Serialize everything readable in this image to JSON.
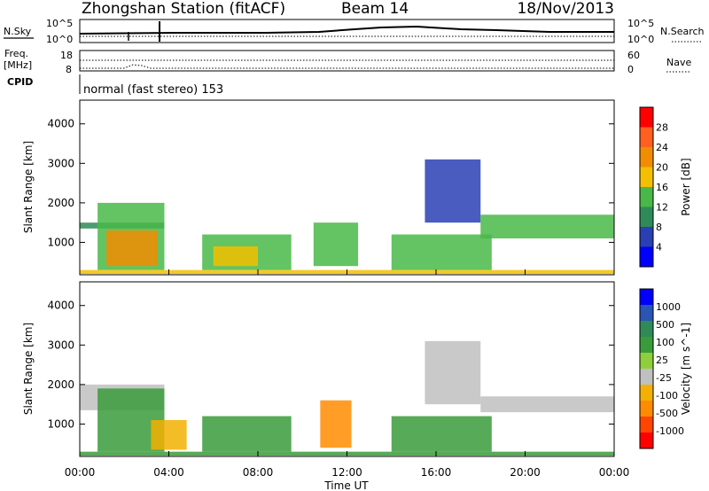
{
  "header": {
    "title": "Zhongshan Station (fitACF)",
    "beam": "Beam 14",
    "date": "18/Nov/2013"
  },
  "noise_panel": {
    "left_label": "N.Sky",
    "left_ticks": [
      "10^5",
      "10^0"
    ],
    "right_ticks": [
      "10^5",
      "10^0"
    ],
    "right_label": "N.Search"
  },
  "freq_panel": {
    "left_label_1": "Freq.",
    "left_label_2": "[MHz]",
    "left_ticks": [
      "18",
      "8"
    ],
    "right_ticks": [
      "60",
      "0"
    ],
    "right_label": "Nave"
  },
  "cpid_panel": {
    "left_label": "CPID",
    "text": "normal (fast stereo) 153"
  },
  "colors": {
    "power": [
      "#0000ff",
      "#2a3fb4",
      "#2e8b57",
      "#49b847",
      "#f2c000",
      "#f28c00",
      "#ff6020",
      "#ff0000"
    ],
    "velocity": [
      "#ff0000",
      "#ff4500",
      "#ff8c00",
      "#f2b000",
      "#c0c0c0",
      "#8fce3c",
      "#3a9b3a",
      "#2e8b57",
      "#2a55b4",
      "#0000ff"
    ]
  },
  "chart_data": [
    {
      "type": "heatmap",
      "name": "power",
      "xlabel": "",
      "ylabel": "Slant Range [km]",
      "x_ticks": [
        "00:00",
        "04:00",
        "08:00",
        "12:00",
        "16:00",
        "20:00",
        "00:00"
      ],
      "xlim": [
        0,
        24
      ],
      "ylim": [
        180,
        4600
      ],
      "y_ticks": [
        1000,
        2000,
        3000,
        4000
      ],
      "colorbar": {
        "label": "Power [dB]",
        "ticks": [
          4,
          8,
          12,
          16,
          20,
          24,
          28
        ],
        "range": [
          0,
          32
        ]
      },
      "regions": [
        {
          "t": [
            0.0,
            3.8
          ],
          "r": [
            1350,
            1500
          ],
          "level": 2
        },
        {
          "t": [
            0.8,
            3.8
          ],
          "r": [
            300,
            2000
          ],
          "level": 3
        },
        {
          "t": [
            1.2,
            3.5
          ],
          "r": [
            400,
            1300
          ],
          "level": 5
        },
        {
          "t": [
            5.5,
            9.5
          ],
          "r": [
            300,
            1200
          ],
          "level": 3
        },
        {
          "t": [
            6.0,
            8.0
          ],
          "r": [
            400,
            900
          ],
          "level": 4
        },
        {
          "t": [
            10.5,
            12.5
          ],
          "r": [
            400,
            1500
          ],
          "level": 3
        },
        {
          "t": [
            14.0,
            18.5
          ],
          "r": [
            300,
            1200
          ],
          "level": 3
        },
        {
          "t": [
            15.5,
            18.0
          ],
          "r": [
            1500,
            3100
          ],
          "level": 1
        },
        {
          "t": [
            18.0,
            24.0
          ],
          "r": [
            1100,
            1700
          ],
          "level": 3
        },
        {
          "t": [
            0.0,
            24.0
          ],
          "r": [
            200,
            300
          ],
          "level": 4
        }
      ]
    },
    {
      "type": "heatmap",
      "name": "velocity",
      "xlabel": "Time UT",
      "ylabel": "Slant Range [km]",
      "x_ticks": [
        "00:00",
        "04:00",
        "08:00",
        "12:00",
        "16:00",
        "20:00",
        "00:00"
      ],
      "xlim": [
        0,
        24
      ],
      "ylim": [
        180,
        4600
      ],
      "y_ticks": [
        1000,
        2000,
        3000,
        4000
      ],
      "colorbar": {
        "label": "Velocity [m s^-1]",
        "ticks": [
          "1000",
          "500",
          "100",
          "25",
          "-25",
          "-100",
          "-500",
          "-1000"
        ]
      },
      "regions": [
        {
          "t": [
            0.0,
            3.8
          ],
          "r": [
            1350,
            2000
          ],
          "level": 4
        },
        {
          "t": [
            0.8,
            3.8
          ],
          "r": [
            300,
            1900
          ],
          "level": 6
        },
        {
          "t": [
            3.2,
            4.8
          ],
          "r": [
            350,
            1100
          ],
          "level": 3
        },
        {
          "t": [
            5.5,
            9.5
          ],
          "r": [
            300,
            1200
          ],
          "level": 6
        },
        {
          "t": [
            10.8,
            12.2
          ],
          "r": [
            400,
            1600
          ],
          "level": 2
        },
        {
          "t": [
            14.0,
            18.5
          ],
          "r": [
            300,
            1200
          ],
          "level": 6
        },
        {
          "t": [
            15.5,
            18.0
          ],
          "r": [
            1500,
            3100
          ],
          "level": 4
        },
        {
          "t": [
            18.0,
            24.0
          ],
          "r": [
            1300,
            1700
          ],
          "level": 4
        },
        {
          "t": [
            0.0,
            24.0
          ],
          "r": [
            200,
            300
          ],
          "level": 6
        }
      ]
    }
  ]
}
